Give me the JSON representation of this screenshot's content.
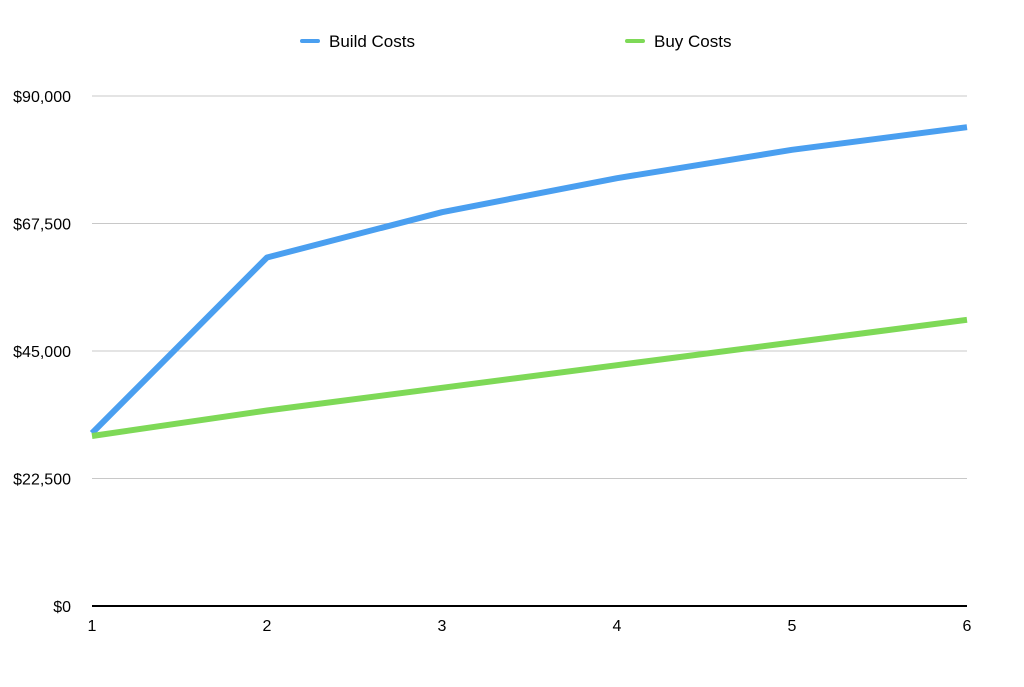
{
  "chart_data": {
    "type": "line",
    "x": [
      1,
      2,
      3,
      4,
      5,
      6
    ],
    "ylim": [
      0,
      90000
    ],
    "y_ticks": [
      0,
      22500,
      45000,
      67500,
      90000
    ],
    "y_tick_labels": [
      "$0",
      "$22,500",
      "$45,000",
      "$67,500",
      "$90,000"
    ],
    "x_tick_labels": [
      "1",
      "2",
      "3",
      "4",
      "5",
      "6"
    ],
    "grid": true,
    "legend_position": "top-center",
    "series": [
      {
        "name": "Build Costs",
        "color": "#4a9ff0",
        "values": [
          30500,
          61500,
          69500,
          75500,
          80500,
          84500
        ]
      },
      {
        "name": "Buy Costs",
        "color": "#7ed957",
        "values": [
          30000,
          34500,
          38500,
          42500,
          46500,
          50500
        ]
      }
    ]
  }
}
